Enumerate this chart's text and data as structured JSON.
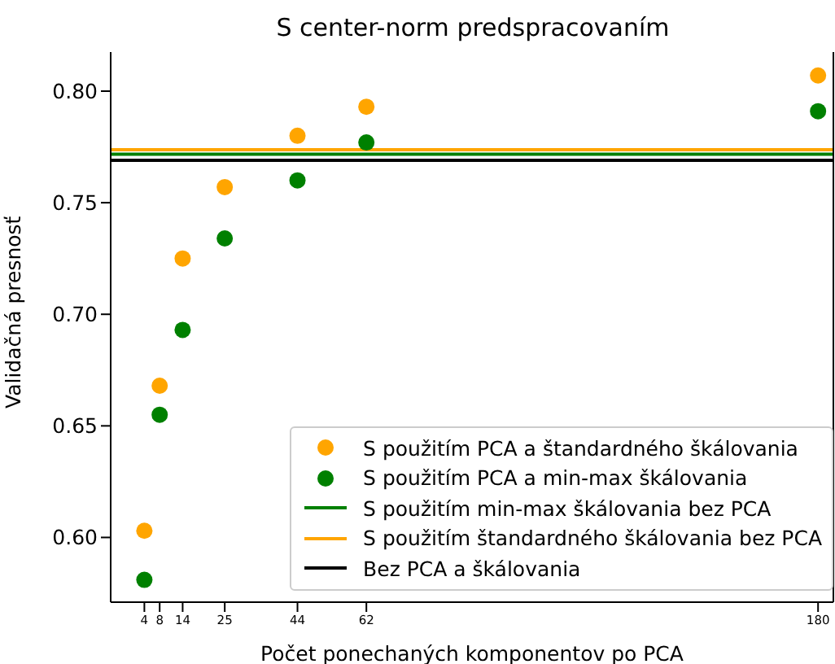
{
  "chart_data": {
    "type": "scatter",
    "title": "S center-norm predspracovaním",
    "xlabel": "Počet ponechaných komponentov po PCA",
    "ylabel": "Validačná presnosť",
    "x": [
      4,
      8,
      14,
      25,
      44,
      62,
      180
    ],
    "series": [
      {
        "name": "S použitím PCA a štandardného škálovania",
        "color": "#ffa500",
        "values": [
          0.603,
          0.668,
          0.725,
          0.757,
          0.78,
          0.793,
          0.807
        ]
      },
      {
        "name": "S použitím PCA a min-max škálovania",
        "color": "#008000",
        "values": [
          0.581,
          0.655,
          0.693,
          0.734,
          0.76,
          0.777,
          0.791
        ]
      }
    ],
    "ref_lines": [
      {
        "axis": "y",
        "value": 0.7717,
        "label": "S použitím min-max škálovania bez PCA",
        "color": "#008000"
      },
      {
        "axis": "y",
        "value": 0.7737,
        "label": "S použitím štandardného škálovania bez PCA",
        "color": "#ffa500"
      },
      {
        "axis": "y",
        "value": 0.769,
        "label": "Bez PCA a škálovania",
        "color": "#000000"
      }
    ],
    "xlim": [
      -4.8,
      184
    ],
    "xticks": [
      4,
      8,
      14,
      25,
      44,
      62,
      180
    ],
    "ylim": [
      0.571,
      0.8175
    ],
    "yticks": [
      {
        "value": 0.6,
        "label": "0.60"
      },
      {
        "value": 0.65,
        "label": "0.65"
      },
      {
        "value": 0.7,
        "label": "0.70"
      },
      {
        "value": 0.75,
        "label": "0.75"
      },
      {
        "value": 0.8,
        "label": "0.80"
      }
    ],
    "marker": "circle",
    "legend": "bottom right",
    "grid": false
  }
}
